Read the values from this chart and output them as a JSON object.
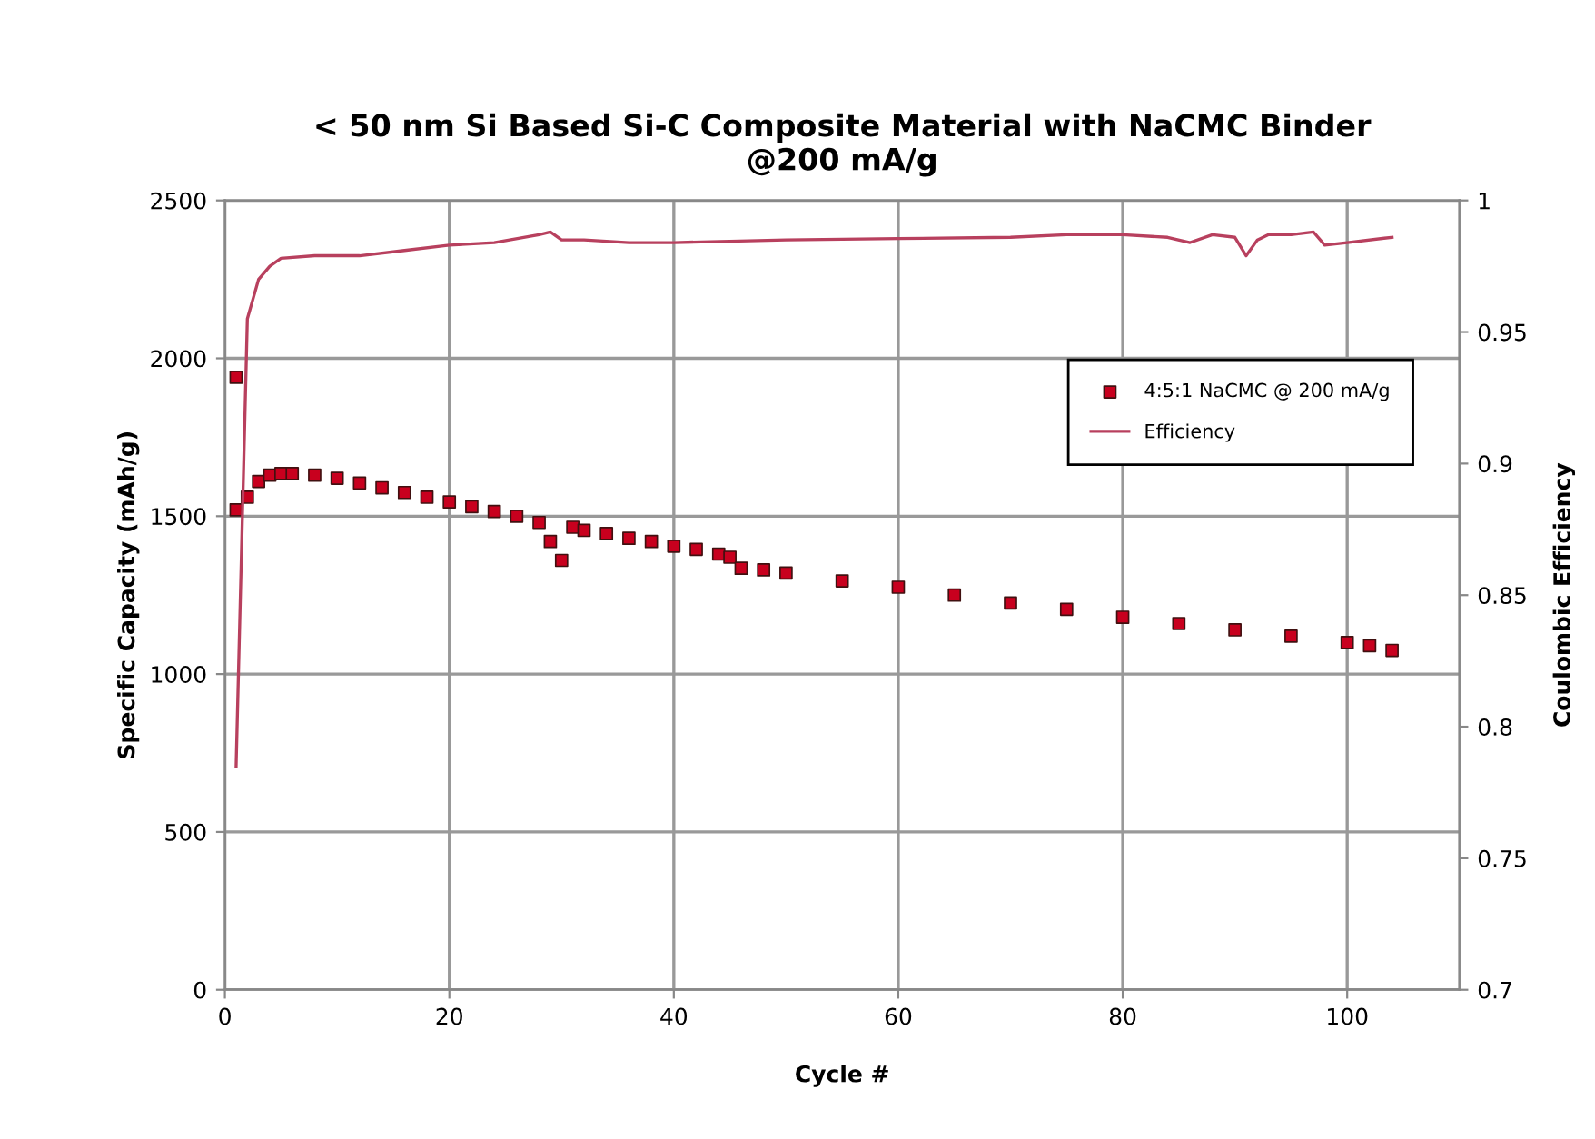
{
  "chart_data": {
    "type": "scatter",
    "title": "< 50 nm Si Based Si-C Composite Material with NaCMC Binder\n@200 mA/g",
    "xlabel": "Cycle #",
    "ylabel": "Specific Capacity (mAh/g)",
    "y2label": "Coulombic Efficiency",
    "xlim": [
      0,
      110
    ],
    "xticks": [
      0,
      20,
      40,
      60,
      80,
      100
    ],
    "ylim": [
      0,
      2500
    ],
    "yticks": [
      0,
      500,
      1000,
      1500,
      2000,
      2500
    ],
    "y2lim": [
      0.7,
      1
    ],
    "y2ticks": [
      0.7,
      0.75,
      0.8,
      0.85,
      0.9,
      0.95,
      1
    ],
    "grid": true,
    "legend": "right",
    "series": [
      {
        "name": "4:5:1 NaCMC @ 200 mA/g",
        "marker": "square",
        "color": "#c8001e",
        "x": [
          1,
          1,
          2,
          3,
          4,
          5,
          6,
          8,
          10,
          12,
          14,
          16,
          18,
          20,
          22,
          24,
          26,
          28,
          29,
          30,
          31,
          32,
          34,
          36,
          38,
          40,
          42,
          44,
          45,
          46,
          48,
          50,
          55,
          60,
          65,
          70,
          75,
          80,
          85,
          90,
          95,
          100,
          102,
          104
        ],
        "values": [
          1940,
          1520,
          1560,
          1610,
          1630,
          1635,
          1635,
          1630,
          1620,
          1605,
          1590,
          1575,
          1560,
          1545,
          1530,
          1515,
          1500,
          1480,
          1420,
          1360,
          1465,
          1455,
          1445,
          1430,
          1420,
          1405,
          1395,
          1380,
          1370,
          1335,
          1330,
          1320,
          1295,
          1275,
          1250,
          1225,
          1205,
          1180,
          1160,
          1140,
          1120,
          1100,
          1090,
          1075
        ]
      },
      {
        "name": "Efficiency",
        "type": "line",
        "axis": "y2",
        "color": "#b8405e",
        "line_style": "solid",
        "x": [
          1,
          2,
          3,
          4,
          5,
          8,
          12,
          16,
          20,
          24,
          28,
          29,
          30,
          32,
          36,
          40,
          50,
          60,
          70,
          75,
          80,
          84,
          86,
          88,
          90,
          91,
          92,
          93,
          95,
          97,
          98,
          100,
          104
        ],
        "values": [
          0.785,
          0.955,
          0.97,
          0.975,
          0.978,
          0.979,
          0.979,
          0.981,
          0.983,
          0.984,
          0.987,
          0.988,
          0.985,
          0.985,
          0.984,
          0.984,
          0.985,
          0.9855,
          0.986,
          0.987,
          0.987,
          0.986,
          0.984,
          0.987,
          0.986,
          0.979,
          0.985,
          0.987,
          0.987,
          0.988,
          0.983,
          0.984,
          0.986
        ]
      }
    ]
  }
}
